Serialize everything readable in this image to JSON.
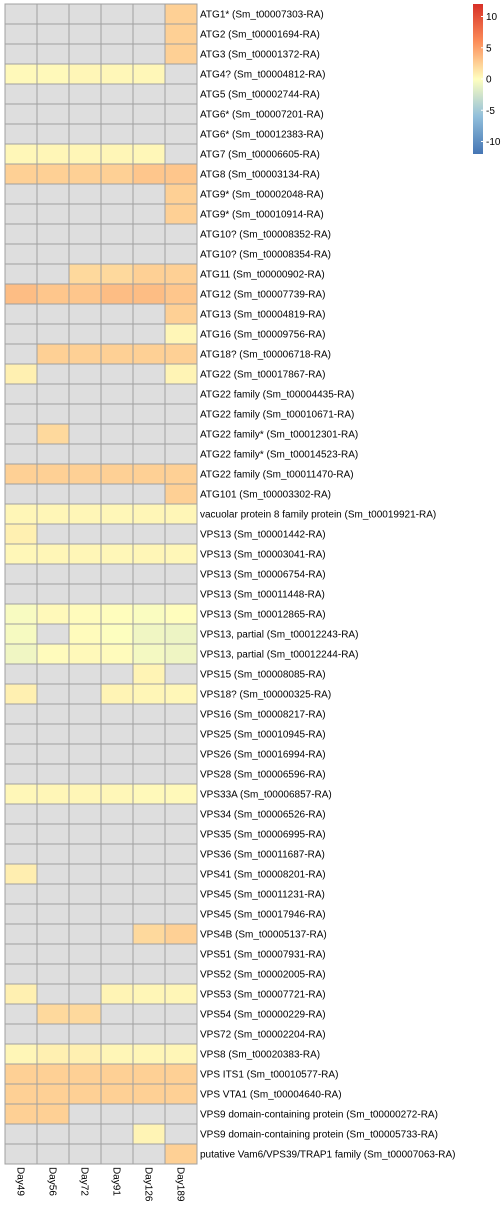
{
  "chart_data": {
    "type": "heatmap",
    "columns": [
      "Day49",
      "Day56",
      "Day72",
      "Day91",
      "Day126",
      "Day189"
    ],
    "legend_ticks": [
      "10",
      "5",
      "0",
      "-5",
      "-10"
    ],
    "value_range": [
      -12,
      12
    ],
    "na_color": "#DEDEDE",
    "rows": [
      {
        "label": "ATG1* (Sm_t00007303-RA)",
        "values": [
          null,
          null,
          null,
          null,
          null,
          2.5
        ]
      },
      {
        "label": "ATG2 (Sm_t00001694-RA)",
        "values": [
          null,
          null,
          null,
          null,
          null,
          2.5
        ]
      },
      {
        "label": "ATG3 (Sm_t00001372-RA)",
        "values": [
          null,
          null,
          null,
          null,
          null,
          2.5
        ]
      },
      {
        "label": "ATG4? (Sm_t00004812-RA)",
        "values": [
          0.3,
          0.3,
          0.5,
          0.4,
          0.4,
          null
        ]
      },
      {
        "label": "ATG5 (Sm_t00002744-RA)",
        "values": [
          null,
          null,
          null,
          null,
          null,
          null
        ]
      },
      {
        "label": "ATG6* (Sm_t00007201-RA)",
        "values": [
          null,
          null,
          null,
          null,
          null,
          null
        ]
      },
      {
        "label": "ATG6* (Sm_t00012383-RA)",
        "values": [
          null,
          null,
          null,
          null,
          null,
          null
        ]
      },
      {
        "label": "ATG7 (Sm_t00006605-RA)",
        "values": [
          0.4,
          0.5,
          0.5,
          0.5,
          0.4,
          null
        ]
      },
      {
        "label": "ATG8 (Sm_t00003134-RA)",
        "values": [
          2.5,
          2.5,
          2.5,
          2.5,
          3.0,
          3.0
        ]
      },
      {
        "label": "ATG9* (Sm_t00002048-RA)",
        "values": [
          null,
          null,
          null,
          null,
          null,
          2.5
        ]
      },
      {
        "label": "ATG9* (Sm_t00010914-RA)",
        "values": [
          null,
          null,
          null,
          null,
          null,
          2.5
        ]
      },
      {
        "label": "ATG10? (Sm_t00008352-RA)",
        "values": [
          null,
          null,
          null,
          null,
          null,
          null
        ]
      },
      {
        "label": "ATG10? (Sm_t00008354-RA)",
        "values": [
          null,
          null,
          null,
          null,
          null,
          null
        ]
      },
      {
        "label": "ATG11 (Sm_t00000902-RA)",
        "values": [
          null,
          null,
          2.0,
          2.0,
          2.5,
          2.5
        ]
      },
      {
        "label": "ATG12 (Sm_t00007739-RA)",
        "values": [
          3.5,
          3.0,
          3.0,
          3.5,
          3.5,
          3.0
        ]
      },
      {
        "label": "ATG13 (Sm_t00004819-RA)",
        "values": [
          null,
          null,
          null,
          null,
          null,
          2.5
        ]
      },
      {
        "label": "ATG16 (Sm_t00009756-RA)",
        "values": [
          null,
          null,
          null,
          null,
          null,
          0.5
        ]
      },
      {
        "label": "ATG18? (Sm_t00006718-RA)",
        "values": [
          null,
          2.5,
          2.5,
          2.5,
          2.5,
          2.5
        ]
      },
      {
        "label": "ATG22 (Sm_t00017867-RA)",
        "values": [
          0.8,
          null,
          null,
          null,
          null,
          0.6
        ]
      },
      {
        "label": "ATG22 family (Sm_t00004435-RA)",
        "values": [
          null,
          null,
          null,
          null,
          null,
          null
        ]
      },
      {
        "label": "ATG22 family (Sm_t00010671-RA)",
        "values": [
          null,
          null,
          null,
          null,
          null,
          null
        ]
      },
      {
        "label": "ATG22 family* (Sm_t00012301-RA)",
        "values": [
          null,
          2.0,
          null,
          null,
          null,
          null
        ]
      },
      {
        "label": "ATG22 family* (Sm_t00014523-RA)",
        "values": [
          null,
          null,
          null,
          null,
          null,
          null
        ]
      },
      {
        "label": "ATG22 family (Sm_t00011470-RA)",
        "values": [
          2.5,
          2.5,
          2.5,
          2.5,
          2.5,
          2.5
        ]
      },
      {
        "label": "ATG101 (Sm_t00003302-RA)",
        "values": [
          null,
          null,
          null,
          null,
          null,
          2.5
        ]
      },
      {
        "label": "vacuolar protein 8 family protein (Sm_t00019921-RA)",
        "values": [
          0.5,
          0.5,
          0.5,
          0.4,
          0.5,
          0.5
        ]
      },
      {
        "label": "VPS13 (Sm_t00001442-RA)",
        "values": [
          0.8,
          null,
          null,
          null,
          null,
          null
        ]
      },
      {
        "label": "VPS13 (Sm_t00003041-RA)",
        "values": [
          0.4,
          0.5,
          0.5,
          0.4,
          0.5,
          0.4
        ]
      },
      {
        "label": "VPS13 (Sm_t00006754-RA)",
        "values": [
          null,
          null,
          null,
          null,
          null,
          null
        ]
      },
      {
        "label": "VPS13 (Sm_t00011448-RA)",
        "values": [
          null,
          null,
          null,
          null,
          null,
          null
        ]
      },
      {
        "label": "VPS13 (Sm_t00012865-RA)",
        "values": [
          -0.4,
          0.3,
          0.2,
          0.1,
          -0.3,
          0.1
        ]
      },
      {
        "label": "VPS13, partial (Sm_t00012243-RA)",
        "values": [
          -0.5,
          null,
          0.2,
          -0.1,
          -0.8,
          -1.0
        ]
      },
      {
        "label": "VPS13, partial (Sm_t00012244-RA)",
        "values": [
          -0.8,
          0.2,
          0.3,
          0.2,
          -0.6,
          -0.9
        ]
      },
      {
        "label": "VPS15 (Sm_t00008085-RA)",
        "values": [
          null,
          null,
          null,
          null,
          0.6,
          null
        ]
      },
      {
        "label": "VPS18? (Sm_t00000325-RA)",
        "values": [
          0.8,
          null,
          null,
          0.6,
          0.5,
          0.4
        ]
      },
      {
        "label": "VPS16 (Sm_t00008217-RA)",
        "values": [
          null,
          null,
          null,
          null,
          null,
          null
        ]
      },
      {
        "label": "VPS25 (Sm_t00010945-RA)",
        "values": [
          null,
          null,
          null,
          null,
          null,
          null
        ]
      },
      {
        "label": "VPS26 (Sm_t00016994-RA)",
        "values": [
          null,
          null,
          null,
          null,
          null,
          null
        ]
      },
      {
        "label": "VPS28 (Sm_t00006596-RA)",
        "values": [
          null,
          null,
          null,
          null,
          null,
          null
        ]
      },
      {
        "label": "VPS33A (Sm_t00006857-RA)",
        "values": [
          0.4,
          0.5,
          0.5,
          0.4,
          0.3,
          0.3
        ]
      },
      {
        "label": "VPS34 (Sm_t00006526-RA)",
        "values": [
          null,
          null,
          null,
          null,
          null,
          null
        ]
      },
      {
        "label": "VPS35 (Sm_t00006995-RA)",
        "values": [
          null,
          null,
          null,
          null,
          null,
          null
        ]
      },
      {
        "label": "VPS36 (Sm_t00011687-RA)",
        "values": [
          null,
          null,
          null,
          null,
          null,
          null
        ]
      },
      {
        "label": "VPS41 (Sm_t00008201-RA)",
        "values": [
          0.9,
          null,
          null,
          null,
          null,
          null
        ]
      },
      {
        "label": "VPS45 (Sm_t00011231-RA)",
        "values": [
          null,
          null,
          null,
          null,
          null,
          null
        ]
      },
      {
        "label": "VPS45 (Sm_t00017946-RA)",
        "values": [
          null,
          null,
          null,
          null,
          null,
          null
        ]
      },
      {
        "label": "VPS4B (Sm_t00005137-RA)",
        "values": [
          null,
          null,
          null,
          null,
          2.0,
          2.5
        ]
      },
      {
        "label": "VPS51 (Sm_t00007931-RA)",
        "values": [
          null,
          null,
          null,
          null,
          null,
          null
        ]
      },
      {
        "label": "VPS52 (Sm_t00002005-RA)",
        "values": [
          null,
          null,
          null,
          null,
          null,
          null
        ]
      },
      {
        "label": "VPS53 (Sm_t00007721-RA)",
        "values": [
          0.8,
          null,
          null,
          0.6,
          0.5,
          0.5
        ]
      },
      {
        "label": "VPS54 (Sm_t00000229-RA)",
        "values": [
          null,
          2.0,
          2.0,
          null,
          null,
          null
        ]
      },
      {
        "label": "VPS72 (Sm_t00002204-RA)",
        "values": [
          null,
          null,
          null,
          null,
          null,
          null
        ]
      },
      {
        "label": "VPS8 (Sm_t00020383-RA)",
        "values": [
          0.5,
          0.8,
          0.8,
          0.5,
          0.5,
          0.5
        ]
      },
      {
        "label": "VPS ITS1 (Sm_t00010577-RA)",
        "values": [
          2.5,
          2.5,
          2.5,
          2.5,
          2.5,
          2.5
        ]
      },
      {
        "label": "VPS VTA1 (Sm_t00004640-RA)",
        "values": [
          2.5,
          2.5,
          2.5,
          2.5,
          2.5,
          2.5
        ]
      },
      {
        "label": "VPS9 domain-containing protein (Sm_t00000272-RA)",
        "values": [
          2.5,
          2.5,
          null,
          null,
          null,
          null
        ]
      },
      {
        "label": "VPS9 domain-containing protein (Sm_t00005733-RA)",
        "values": [
          null,
          null,
          null,
          null,
          0.6,
          null
        ]
      },
      {
        "label": "putative Vam6/VPS39/TRAP1 family (Sm_t00007063-RA)",
        "values": [
          null,
          null,
          null,
          null,
          null,
          2.5
        ]
      }
    ]
  }
}
